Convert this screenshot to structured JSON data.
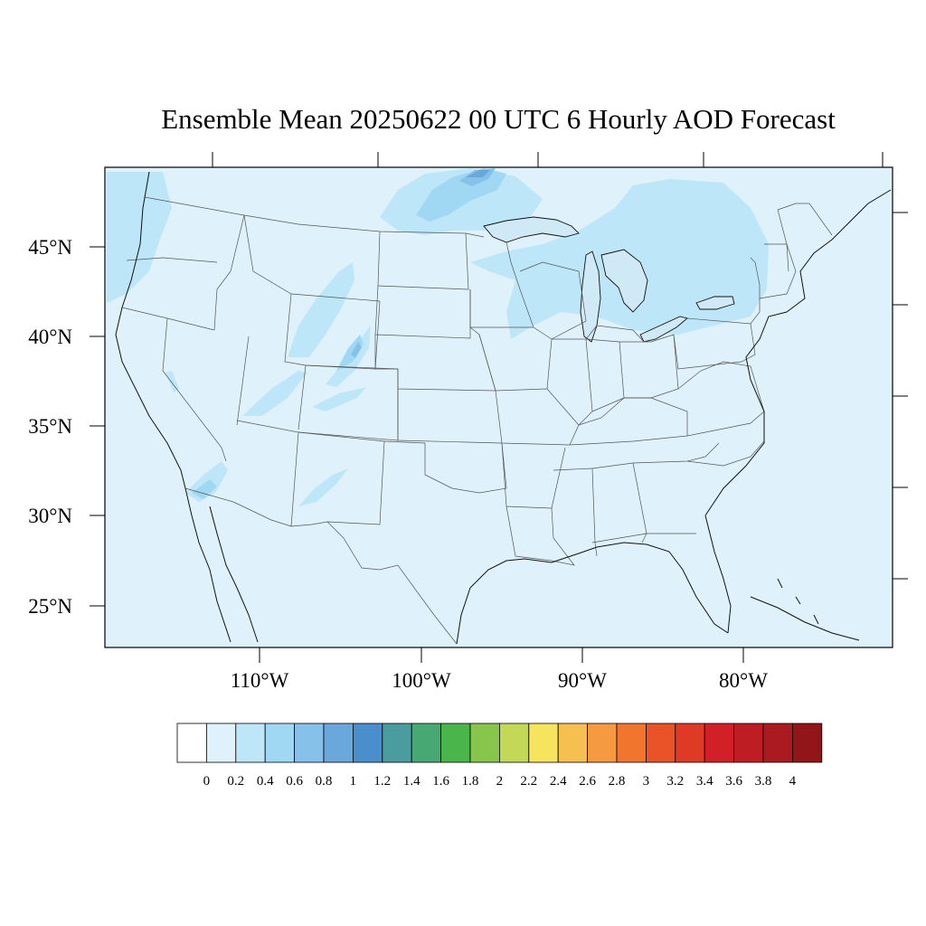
{
  "title": "Ensemble Mean 20250622 00 UTC 6 Hourly AOD Forecast",
  "lat_labels": [
    "45°N",
    "40°N",
    "35°N",
    "30°N",
    "25°N"
  ],
  "lon_labels": [
    "110°W",
    "100°W",
    "90°W",
    "80°W"
  ],
  "colorbar": {
    "labels": [
      "0",
      "0.2",
      "0.4",
      "0.6",
      "0.8",
      "1",
      "1.2",
      "1.4",
      "1.6",
      "1.8",
      "2",
      "2.2",
      "2.4",
      "2.6",
      "2.8",
      "3",
      "3.2",
      "3.4",
      "3.6",
      "3.8",
      "4"
    ],
    "colors": [
      "#ffffff",
      "#dff2fb",
      "#bde6f8",
      "#a0d8f3",
      "#85c1e8",
      "#6aa8dc",
      "#4a8ecb",
      "#4a9c9e",
      "#48a874",
      "#4ab54a",
      "#88c54c",
      "#c4d858",
      "#f6e45e",
      "#f6c050",
      "#f59a40",
      "#f2752e",
      "#ea5228",
      "#df3a26",
      "#d22028",
      "#be1d24",
      "#aa1a20",
      "#911519"
    ]
  },
  "chart_data": {
    "type": "heatmap",
    "variable": "AOD",
    "lat_range": [
      22.5,
      49.5
    ],
    "lon_range": [
      -119,
      -70
    ],
    "levels": [
      0,
      0.2,
      0.4,
      0.6,
      0.8,
      1,
      1.2,
      1.4,
      1.6,
      1.8,
      2,
      2.2,
      2.4,
      2.6,
      2.8,
      3,
      3.2,
      3.4,
      3.6,
      3.8,
      4
    ],
    "background_value_range": [
      0,
      0.2
    ],
    "notable_regions": [
      {
        "region": "Northern Minnesota / Lake Superior",
        "value_range": [
          0.4,
          1.0
        ]
      },
      {
        "region": "Wyoming / Colorado plumes",
        "value_range": [
          0.2,
          0.8
        ]
      },
      {
        "region": "Great Lakes / Upper Midwest",
        "value_range": [
          0.2,
          0.4
        ]
      },
      {
        "region": "Pacific Northwest coast",
        "value_range": [
          0.2,
          0.4
        ]
      },
      {
        "region": "Southern Arizona / Gulf of California",
        "value_range": [
          0.2,
          0.6
        ]
      }
    ]
  }
}
